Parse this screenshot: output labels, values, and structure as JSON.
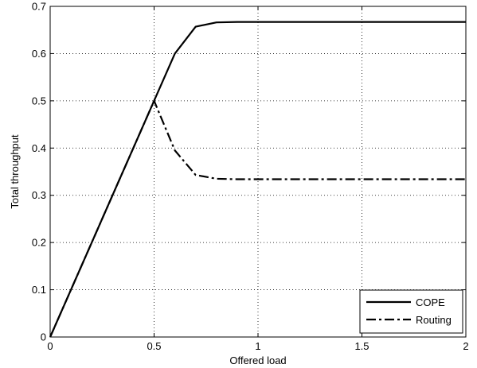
{
  "chart_data": {
    "type": "line",
    "title": "",
    "xlabel": "Offered load",
    "ylabel": "Total throughput",
    "xlim": [
      0,
      2
    ],
    "ylim": [
      0,
      0.7
    ],
    "xticks": [
      0,
      0.5,
      1,
      1.5,
      2
    ],
    "xtick_labels": [
      "0",
      "0.5",
      "1",
      "1.5",
      "2"
    ],
    "yticks": [
      0,
      0.1,
      0.2,
      0.3,
      0.4,
      0.5,
      0.6,
      0.7
    ],
    "ytick_labels": [
      "0",
      "0.1",
      "0.2",
      "0.3",
      "0.4",
      "0.5",
      "0.6",
      "0.7"
    ],
    "grid": true,
    "grid_style": "dotted",
    "legend_position": "bottom-right",
    "series": [
      {
        "name": "COPE",
        "style": "solid",
        "color": "#000000",
        "x": [
          0,
          0.1,
          0.2,
          0.3,
          0.4,
          0.5,
          0.6,
          0.7,
          0.8,
          0.9,
          1.0,
          1.1,
          1.2,
          1.3,
          1.4,
          1.5,
          1.6,
          1.7,
          1.8,
          1.9,
          2.0
        ],
        "y": [
          0,
          0.1,
          0.2,
          0.3,
          0.4,
          0.5,
          0.6,
          0.657,
          0.666,
          0.667,
          0.667,
          0.667,
          0.667,
          0.667,
          0.667,
          0.667,
          0.667,
          0.667,
          0.667,
          0.667,
          0.667
        ]
      },
      {
        "name": "Routing",
        "style": "dashdot",
        "color": "#000000",
        "x": [
          0,
          0.1,
          0.2,
          0.3,
          0.4,
          0.5,
          0.6,
          0.7,
          0.8,
          0.9,
          1.0,
          1.1,
          1.2,
          1.3,
          1.4,
          1.5,
          1.6,
          1.7,
          1.8,
          1.9,
          2.0
        ],
        "y": [
          0,
          0.1,
          0.2,
          0.3,
          0.4,
          0.5,
          0.395,
          0.343,
          0.335,
          0.334,
          0.334,
          0.334,
          0.334,
          0.334,
          0.334,
          0.334,
          0.334,
          0.334,
          0.334,
          0.334,
          0.334
        ]
      }
    ]
  }
}
